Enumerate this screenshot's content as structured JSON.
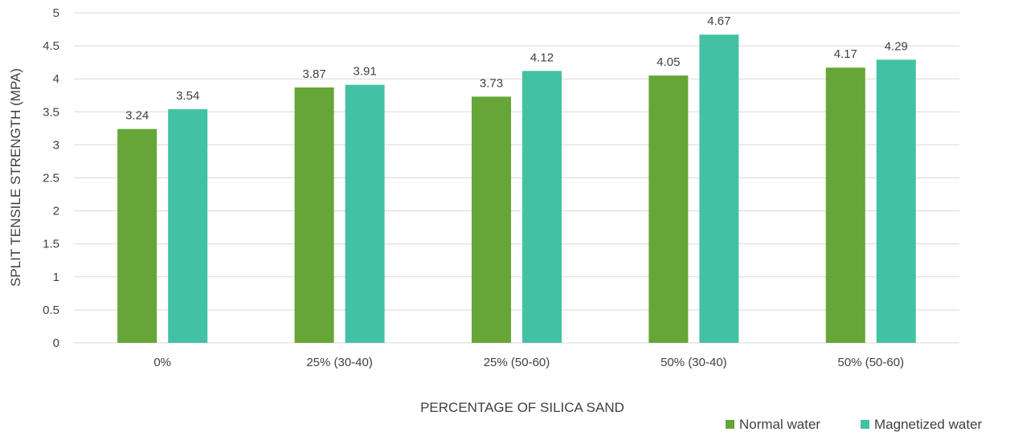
{
  "chart_data": {
    "type": "bar",
    "categories": [
      "0%",
      "25% (30-40)",
      "25% (50-60)",
      "50% (30-40)",
      "50% (50-60)"
    ],
    "series": [
      {
        "name": "Normal water",
        "values": [
          3.24,
          3.87,
          3.73,
          4.05,
          4.17
        ],
        "color": "#66a537"
      },
      {
        "name": "Magnetized water",
        "values": [
          3.54,
          3.91,
          4.12,
          4.67,
          4.29
        ],
        "color": "#43c1a4"
      }
    ],
    "title": "",
    "xlabel": "PERCENTAGE OF SILICA SAND",
    "ylabel": "SPLIT TENSILE STRENGTH (MPA)",
    "ylim": [
      0,
      5
    ],
    "yticks": [
      "0",
      "0.5",
      "1",
      "1.5",
      "2",
      "2.5",
      "3",
      "3.5",
      "4",
      "4.5",
      "5"
    ],
    "grid": true,
    "legend_position": "bottom-right",
    "data_labels": true,
    "gridline_color": "#d9d9d9"
  }
}
